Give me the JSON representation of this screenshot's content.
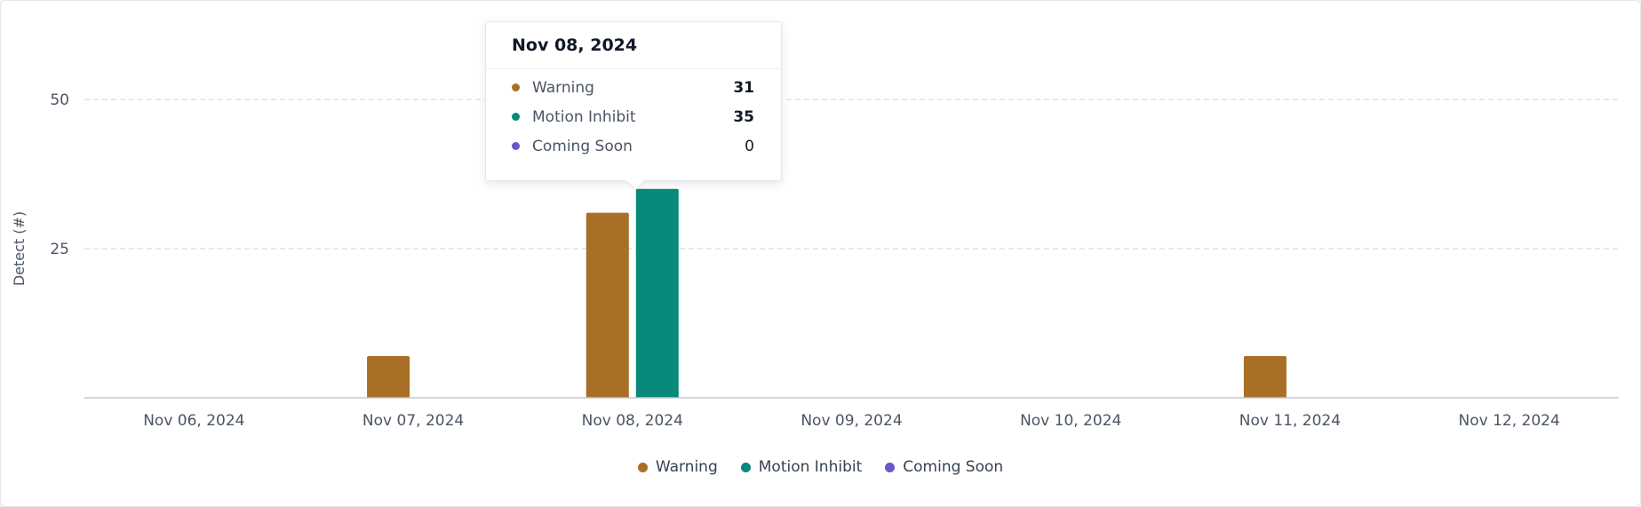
{
  "chart_data": {
    "type": "bar",
    "categories": [
      "Nov 06, 2024",
      "Nov 07, 2024",
      "Nov 08, 2024",
      "Nov 09, 2024",
      "Nov 10, 2024",
      "Nov 11, 2024",
      "Nov 12, 2024"
    ],
    "series": [
      {
        "name": "Warning",
        "color": "#a86f26",
        "values": [
          0,
          7,
          31,
          0,
          0,
          7,
          0
        ]
      },
      {
        "name": "Motion Inhibit",
        "color": "#08897a",
        "values": [
          0,
          0,
          35,
          0,
          0,
          0,
          0
        ]
      },
      {
        "name": "Coming Soon",
        "color": "#6b56c8",
        "values": [
          0,
          0,
          0,
          0,
          0,
          0,
          0
        ]
      }
    ],
    "ylabel": "Detect (#)",
    "yticks": [
      25,
      50
    ],
    "ylim": [
      0,
      50
    ],
    "grid": true,
    "legend_position": "bottom-center"
  },
  "tooltip": {
    "title": "Nov 08, 2024",
    "rows": [
      {
        "label": "Warning",
        "value": "31",
        "color": "#a86f26"
      },
      {
        "label": "Motion Inhibit",
        "value": "35",
        "color": "#08897a"
      },
      {
        "label": "Coming Soon",
        "value": "0",
        "color": "#6b56c8"
      }
    ]
  }
}
